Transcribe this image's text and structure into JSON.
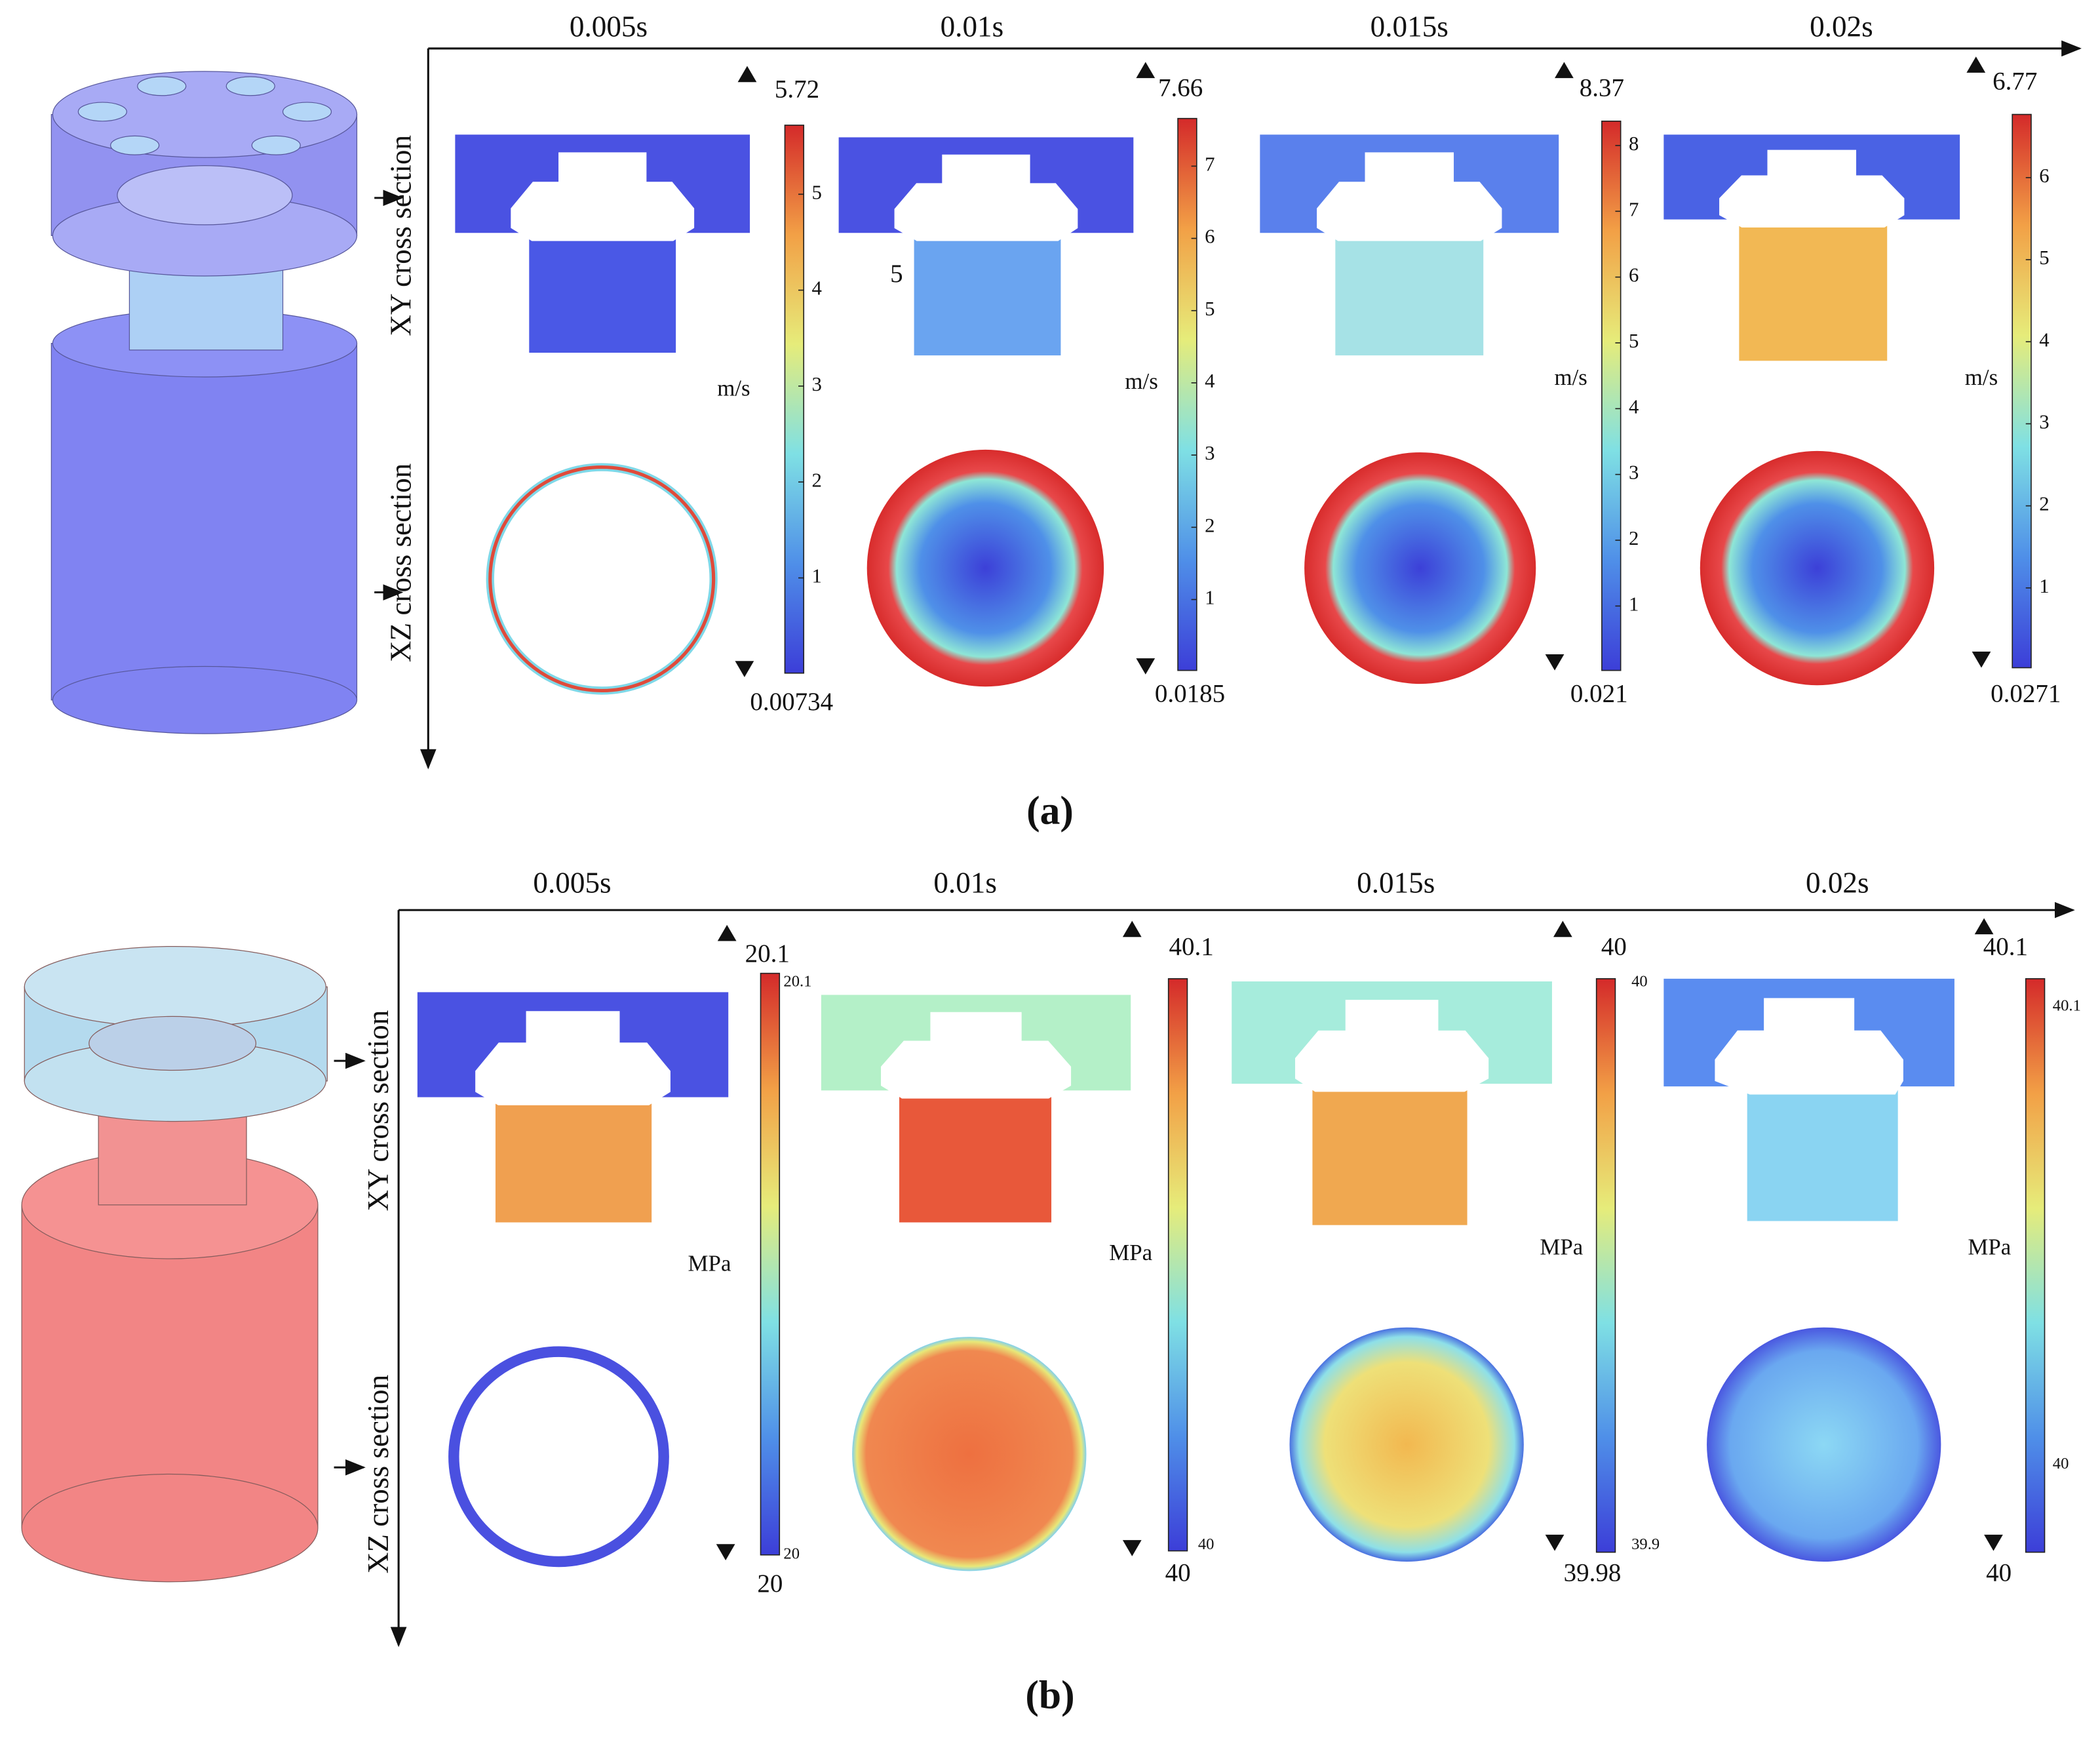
{
  "panels": [
    {
      "label": "(a)",
      "times": [
        "0.005s",
        "0.01s",
        "0.015s",
        "0.02s"
      ],
      "row_labels": [
        "XY cross section",
        "XZ cross section"
      ],
      "annotation": "5",
      "columns": [
        {
          "max": 5.72,
          "min": 0.00734,
          "unit": "m/s",
          "ticks": [
            5,
            4,
            3,
            2,
            1
          ]
        },
        {
          "max": 7.66,
          "min": 0.0185,
          "unit": "m/s",
          "ticks": [
            7,
            6,
            5,
            4,
            3,
            2,
            1
          ]
        },
        {
          "max": 8.37,
          "min": 0.021,
          "unit": "m/s",
          "ticks": [
            8,
            7,
            6,
            5,
            4,
            3,
            2,
            1
          ]
        },
        {
          "max": 6.77,
          "min": 0.0271,
          "unit": "m/s",
          "ticks": [
            6,
            5,
            4,
            3,
            2,
            1
          ]
        }
      ]
    },
    {
      "label": "(b)",
      "times": [
        "0.005s",
        "0.01s",
        "0.015s",
        "0.02s"
      ],
      "row_labels": [
        "XY cross section",
        "XZ cross section"
      ],
      "columns": [
        {
          "max": 20.1,
          "min": 20,
          "unit": "MPa",
          "ticks": [
            20.1,
            20
          ]
        },
        {
          "max": 40.1,
          "min": 40,
          "unit": "MPa",
          "ticks": [
            40
          ]
        },
        {
          "max": 40,
          "min": 39.98,
          "unit": "MPa",
          "ticks": [
            40,
            39.9
          ]
        },
        {
          "max": 40.1,
          "min": 40,
          "unit": "MPa",
          "ticks": [
            40.1,
            40
          ]
        }
      ]
    }
  ]
}
